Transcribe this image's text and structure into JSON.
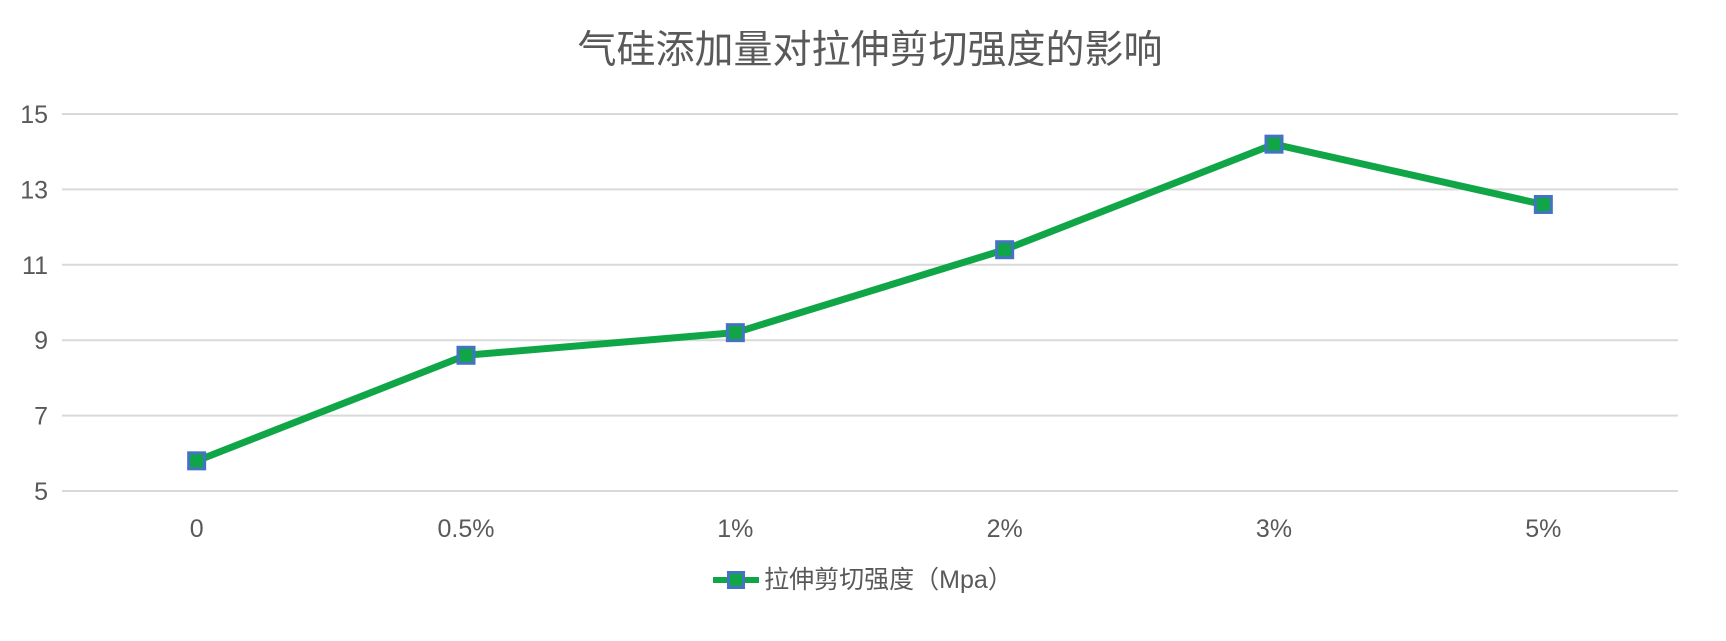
{
  "page": {
    "background": "#ffffff"
  },
  "chart_data": {
    "type": "line",
    "title": "气硅添加量对拉伸剪切强度的影响",
    "categories": [
      "0",
      "0.5%",
      "1%",
      "2%",
      "3%",
      "5%"
    ],
    "series": [
      {
        "name": "拉伸剪切强度（Mpa）",
        "values": [
          5.8,
          8.6,
          9.2,
          11.4,
          14.2,
          12.6
        ],
        "color": "#10A648",
        "marker": {
          "shape": "square",
          "fill": "#10A648",
          "border": "#4472C4"
        }
      }
    ],
    "xlabel": "",
    "ylabel": "",
    "ylim": [
      5,
      15
    ],
    "yticks": [
      5,
      7,
      9,
      11,
      13,
      15
    ],
    "grid": "horizontal",
    "legend_position": "bottom",
    "colors": {
      "gridline": "#D9D9D9",
      "text": "#595959",
      "title": "#595959"
    }
  }
}
